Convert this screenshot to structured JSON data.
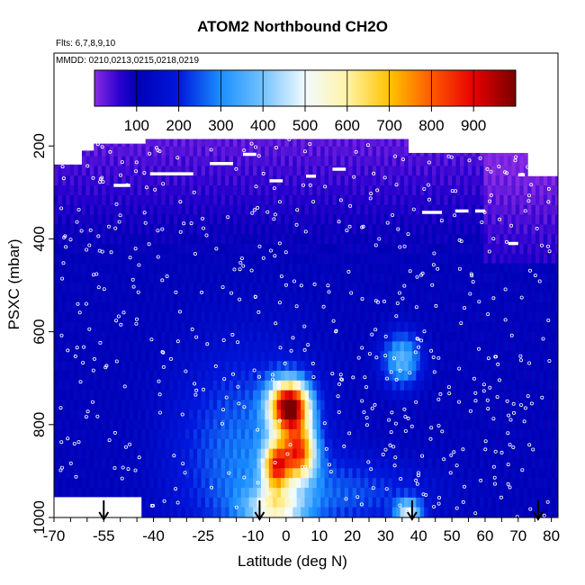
{
  "chart_data": {
    "type": "heatmap",
    "title": "ATOM2 Northbound CH2O",
    "subtitle_flights": "Flts: 6,7,8,9,10",
    "subtitle_dates": "MMDD: 0210,0213,0215,0218,0219",
    "xlabel": "Latitude (deg N)",
    "ylabel": "PSXC (mbar)",
    "xlim": [
      -70,
      82
    ],
    "ylim": [
      1000,
      0
    ],
    "x_ticks": [
      -70,
      -55,
      -40,
      -25,
      -10,
      0,
      10,
      20,
      30,
      40,
      50,
      60,
      70,
      80
    ],
    "x_ticks_minor_step": 5,
    "y_ticks": [
      200,
      400,
      600,
      800,
      1000
    ],
    "colorbar": {
      "range": [
        0,
        1000
      ],
      "ticks": [
        100,
        200,
        300,
        400,
        500,
        600,
        700,
        800,
        900
      ],
      "stops": [
        {
          "v": 0,
          "c": "#8a2be2"
        },
        {
          "v": 60,
          "c": "#2a00d0"
        },
        {
          "v": 100,
          "c": "#0000b4"
        },
        {
          "v": 200,
          "c": "#0018dd"
        },
        {
          "v": 300,
          "c": "#1a8fff"
        },
        {
          "v": 400,
          "c": "#74c2ff"
        },
        {
          "v": 500,
          "c": "#f2fbff"
        },
        {
          "v": 600,
          "c": "#fff3a6"
        },
        {
          "v": 700,
          "c": "#ffc400"
        },
        {
          "v": 800,
          "c": "#ff5a00"
        },
        {
          "v": 900,
          "c": "#e80000"
        },
        {
          "v": 1000,
          "c": "#7a0000"
        }
      ]
    },
    "profile_latitudes": [
      -55,
      -8,
      38,
      76
    ],
    "grid": false,
    "legend": "colorbar top"
  }
}
